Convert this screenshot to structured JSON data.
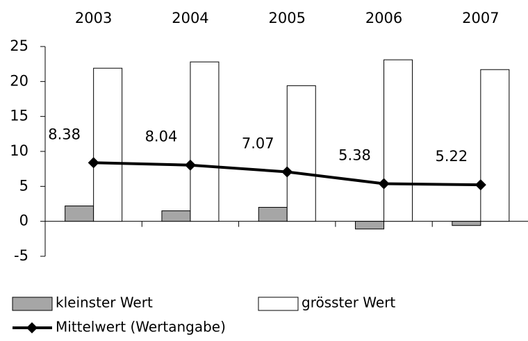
{
  "chart_data": {
    "type": "bar",
    "categories": [
      "2003",
      "2004",
      "2005",
      "2006",
      "2007"
    ],
    "series": [
      {
        "name": "kleinster Wert",
        "type": "bar",
        "color": "#a6a6a6",
        "values": [
          2.2,
          1.5,
          2.0,
          -1.1,
          -0.6
        ]
      },
      {
        "name": "grösster Wert",
        "type": "bar",
        "color": "#ffffff",
        "values": [
          21.9,
          22.8,
          19.4,
          23.1,
          21.7
        ]
      },
      {
        "name": "Mittelwert (Wertangabe)",
        "type": "line",
        "color": "#000000",
        "values": [
          8.38,
          8.04,
          7.07,
          5.38,
          5.22
        ]
      }
    ],
    "ylim": [
      -5,
      25
    ],
    "yticks": [
      -5,
      0,
      5,
      10,
      15,
      20,
      25
    ],
    "grid": false
  }
}
